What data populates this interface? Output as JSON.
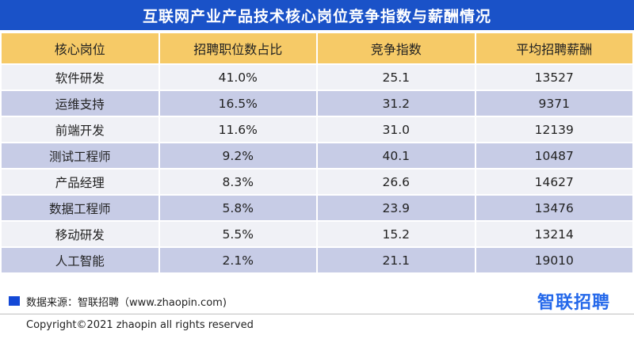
{
  "title": "互联网产业产品技术核心岗位竞争指数与薪酬情况",
  "table": {
    "headers": [
      "核心岗位",
      "招聘职位数占比",
      "竞争指数",
      "平均招聘薪酬"
    ],
    "rows": [
      [
        "软件研发",
        "41.0%",
        "25.1",
        "13527"
      ],
      [
        "运维支持",
        "16.5%",
        "31.2",
        "9371"
      ],
      [
        "前端开发",
        "11.6%",
        "31.0",
        "12139"
      ],
      [
        "测试工程师",
        "9.2%",
        "40.1",
        "10487"
      ],
      [
        "产品经理",
        "8.3%",
        "26.6",
        "14627"
      ],
      [
        "数据工程师",
        "5.8%",
        "23.9",
        "13476"
      ],
      [
        "移动研发",
        "5.5%",
        "15.2",
        "13214"
      ],
      [
        "人工智能",
        "2.1%",
        "21.1",
        "19010"
      ]
    ]
  },
  "source": "数据来源：智联招聘（www.zhaopin.com)",
  "logo": "智联招聘",
  "copyright": "Copyright©2021 zhaopin all rights reserved",
  "colors": {
    "title_bg": "#1a52c8",
    "header_bg": "#f6ca67",
    "row_light": "#f0f1f6",
    "row_dark": "#c7cce6",
    "legend": "#1449d6",
    "logo": "#2468ea"
  }
}
